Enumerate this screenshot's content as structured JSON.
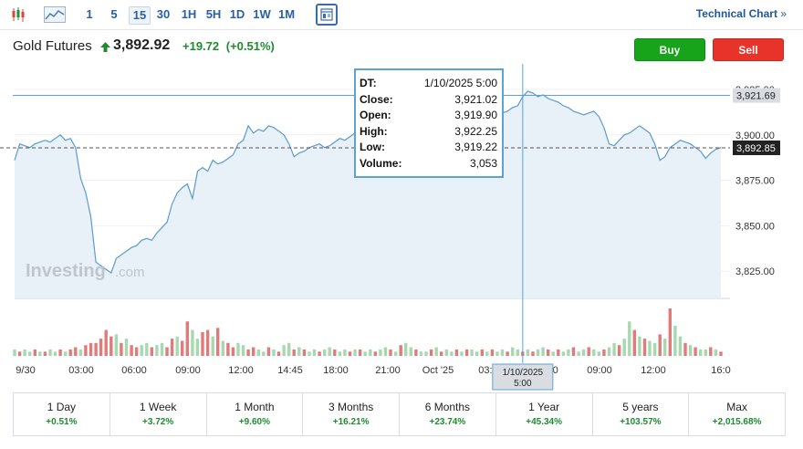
{
  "toolbar": {
    "intervals": [
      "1",
      "5",
      "15",
      "30",
      "1H",
      "5H",
      "1D",
      "1W",
      "1M"
    ],
    "active_interval": "15",
    "technical_chart_label": "Technical Chart",
    "technical_chart_arrow": "»"
  },
  "instrument": {
    "name": "Gold Futures",
    "price": "3,892.92",
    "change": "+19.72",
    "change_pct": "(+0.51%)",
    "up_color": "#1e8b2e"
  },
  "actions": {
    "buy_label": "Buy",
    "sell_label": "Sell"
  },
  "watermark": {
    "brand": "Investing",
    "suffix": ".com"
  },
  "tooltip": {
    "rows": [
      {
        "label": "DT:",
        "value": "1/10/2025 5:00"
      },
      {
        "label": "Close:",
        "value": "3,921.02"
      },
      {
        "label": "Open:",
        "value": "3,919.90"
      },
      {
        "label": "High:",
        "value": "3,922.25"
      },
      {
        "label": "Low:",
        "value": "3,919.22"
      },
      {
        "label": "Volume:",
        "value": "3,053"
      }
    ]
  },
  "crosshair": {
    "time_label_line1": "1/10/2025",
    "time_label_line2": "5:00",
    "price_label": "3,921.69"
  },
  "chart_data": {
    "type": "area",
    "title": "",
    "xlabel": "",
    "ylabel": "",
    "ylim": [
      3810,
      3930
    ],
    "y_ticks": [
      "3,825.00",
      "3,850.00",
      "3,875.00",
      "3,900.00",
      "3,925.00"
    ],
    "y_tick_values": [
      3825,
      3850,
      3875,
      3900,
      3925
    ],
    "x_tick_labels": [
      "9/30",
      "03:00",
      "06:00",
      "09:00",
      "12:00",
      "14:45",
      "18:00",
      "21:00",
      "Oct '25",
      "03:00",
      "06:00",
      "09:00",
      "12:00",
      "16:0"
    ],
    "last_price": 3892.85,
    "last_price_label": "3,892.85",
    "crosshair_price": 3921.69,
    "crosshair_index": 100,
    "line_color": "#5b9bd0",
    "fill_color": "#e6eef7",
    "volume_up_color": "#a8d8b0",
    "volume_down_color": "#e07b7b",
    "series": [
      {
        "values": [
          3886,
          3895,
          3894,
          3893,
          3895,
          3896,
          3897,
          3896,
          3898,
          3900,
          3897,
          3898,
          3893,
          3876,
          3868,
          3855,
          3830,
          3828,
          3826,
          3824,
          3832,
          3834,
          3836,
          3838,
          3839,
          3842,
          3843,
          3842,
          3846,
          3849,
          3852,
          3862,
          3868,
          3871,
          3873,
          3865,
          3880,
          3882,
          3880,
          3886,
          3884,
          3885,
          3887,
          3889,
          3895,
          3897,
          3905,
          3901,
          3903,
          3902,
          3905,
          3904,
          3902,
          3900,
          3895,
          3888,
          3890,
          3891,
          3893,
          3894,
          3895,
          3893,
          3894,
          3896,
          3898,
          3897,
          3899,
          3901,
          3905,
          3904,
          3903,
          3902,
          3900,
          3899,
          3906,
          3910,
          3912,
          3914,
          3916,
          3918,
          3919,
          3912,
          3905,
          3900,
          3898,
          3896,
          3895,
          3897,
          3898,
          3901,
          3902,
          3904,
          3906,
          3907,
          3909,
          3911,
          3912,
          3913,
          3915,
          3916,
          3921,
          3924,
          3923,
          3921,
          3922,
          3920,
          3919,
          3918,
          3916,
          3915,
          3913,
          3912,
          3911,
          3912,
          3913,
          3910,
          3904,
          3895,
          3894,
          3897,
          3900,
          3901,
          3903,
          3905,
          3903,
          3901,
          3895,
          3886,
          3888,
          3893,
          3895,
          3897,
          3896,
          3895,
          3893,
          3891,
          3887,
          3890,
          3892,
          3893
        ],
        "volume": [
          3,
          2,
          3,
          2,
          3,
          2,
          2,
          3,
          2,
          3,
          2,
          3,
          4,
          3,
          5,
          6,
          6,
          8,
          12,
          9,
          10,
          6,
          8,
          5,
          4,
          5,
          6,
          4,
          5,
          6,
          4,
          8,
          9,
          7,
          16,
          12,
          8,
          11,
          12,
          9,
          13,
          7,
          6,
          4,
          6,
          5,
          3,
          4,
          3,
          2,
          4,
          3,
          2,
          5,
          6,
          3,
          4,
          3,
          2,
          3,
          2,
          3,
          4,
          3,
          2,
          3,
          2,
          3,
          3,
          2,
          3,
          2,
          3,
          4,
          3,
          2,
          5,
          6,
          4,
          3,
          2,
          2,
          3,
          4,
          2,
          3,
          2,
          3,
          2,
          3,
          3,
          2,
          3,
          2,
          3,
          2,
          3,
          2,
          4,
          3,
          2,
          3,
          2,
          3,
          4,
          3,
          2,
          3,
          2,
          3,
          4,
          2,
          3,
          4,
          3,
          2,
          3,
          4,
          6,
          5,
          8,
          16,
          12,
          9,
          8,
          7,
          6,
          10,
          8,
          22,
          14,
          9,
          6,
          5,
          4,
          3,
          3,
          4,
          3,
          2
        ],
        "volume_dir": [
          "u",
          "d",
          "u",
          "u",
          "d",
          "u",
          "d",
          "u",
          "u",
          "d",
          "u",
          "d",
          "d",
          "u",
          "d",
          "d",
          "d",
          "d",
          "d",
          "d",
          "u",
          "d",
          "u",
          "d",
          "d",
          "u",
          "u",
          "d",
          "u",
          "u",
          "d",
          "d",
          "u",
          "d",
          "d",
          "u",
          "u",
          "d",
          "d",
          "u",
          "d",
          "u",
          "d",
          "d",
          "u",
          "u",
          "d",
          "d",
          "u",
          "u",
          "d",
          "u",
          "d",
          "u",
          "u",
          "d",
          "u",
          "d",
          "u",
          "u",
          "d",
          "u",
          "u",
          "d",
          "u",
          "u",
          "d",
          "u",
          "d",
          "u",
          "u",
          "d",
          "u",
          "u",
          "d",
          "u",
          "d",
          "u",
          "u",
          "d",
          "u",
          "u",
          "d",
          "u",
          "d",
          "u",
          "u",
          "d",
          "u",
          "d",
          "u",
          "u",
          "d",
          "u",
          "d",
          "u",
          "u",
          "d",
          "u",
          "u",
          "d",
          "u",
          "d",
          "u",
          "u",
          "d",
          "u",
          "d",
          "u",
          "u",
          "d",
          "u",
          "u",
          "d",
          "u",
          "u",
          "d",
          "u",
          "u",
          "d",
          "u",
          "u",
          "d",
          "u",
          "d",
          "u",
          "u",
          "d",
          "u",
          "d",
          "u",
          "u",
          "d",
          "u",
          "d",
          "u",
          "u",
          "d",
          "u",
          "d"
        ]
      }
    ]
  },
  "periods": [
    {
      "label": "1 Day",
      "value": "+0.51%"
    },
    {
      "label": "1 Week",
      "value": "+3.72%"
    },
    {
      "label": "1 Month",
      "value": "+9.60%"
    },
    {
      "label": "3 Months",
      "value": "+16.21%"
    },
    {
      "label": "6 Months",
      "value": "+23.74%"
    },
    {
      "label": "1 Year",
      "value": "+45.34%"
    },
    {
      "label": "5 years",
      "value": "+103.57%"
    },
    {
      "label": "Max",
      "value": "+2,015.68%"
    }
  ]
}
